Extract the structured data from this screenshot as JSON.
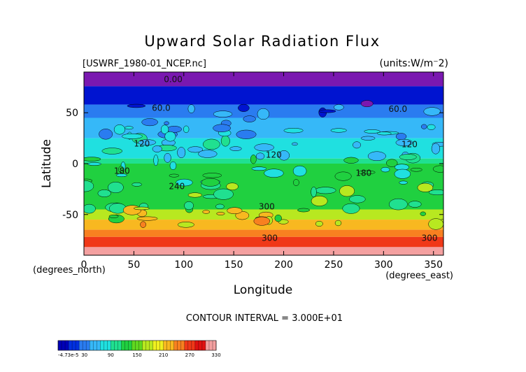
{
  "chart_data": {
    "type": "heatmap",
    "title": "Upward Solar Radiation Flux",
    "source_file": "[USWRF_1980-01_NCEP.nc]",
    "units": "(units:W/m⁻2)",
    "xlabel": "Longitude",
    "xunit": "(degrees_east)",
    "ylabel": "Latitude",
    "yunit": "(degrees_north)",
    "xlim": [
      0,
      360
    ],
    "ylim": [
      -90,
      90
    ],
    "x_ticks": [
      "0",
      "50",
      "100",
      "150",
      "200",
      "250",
      "300",
      "350"
    ],
    "y_ticks": [
      "50",
      "0",
      "-50"
    ],
    "y_tick_values": [
      50,
      0,
      -50
    ],
    "contour_interval_text": "CONTOUR INTERVAL = 3.000E+01",
    "contour_labels": [
      "0.00",
      "60.0",
      "60.0",
      "120",
      "120",
      "120",
      "180",
      "180",
      "240",
      "300",
      "300",
      "300"
    ],
    "colorbar": {
      "labels": [
        "-4.73e-5",
        "30",
        "90",
        "150",
        "210",
        "270",
        "330"
      ],
      "colors": [
        "#0000b8",
        "#0030e0",
        "#2a7cf0",
        "#36b8f8",
        "#20e0e0",
        "#20e090",
        "#20d040",
        "#60d820",
        "#b8e820",
        "#f0f020",
        "#f8b820",
        "#f88020",
        "#f03818",
        "#e01010",
        "#f4a0a0"
      ]
    },
    "lat_bands": [
      {
        "lat_range": [
          76,
          90
        ],
        "value": 0,
        "color": "#7a18b0"
      },
      {
        "lat_range": [
          58,
          76
        ],
        "value": 30,
        "color": "#0014d0"
      },
      {
        "lat_range": [
          45,
          58
        ],
        "value": 60,
        "color": "#2a7cf0"
      },
      {
        "lat_range": [
          25,
          45
        ],
        "value": 90,
        "color": "#36b8f8"
      },
      {
        "lat_range": [
          5,
          25
        ],
        "value": 120,
        "color": "#20e0e0"
      },
      {
        "lat_range": [
          -20,
          5
        ],
        "value": 150,
        "color": "#20e090"
      },
      {
        "lat_range": [
          -45,
          0
        ],
        "value": 180,
        "color": "#20d040"
      },
      {
        "lat_range": [
          -55,
          -45
        ],
        "value": 210,
        "color": "#b8e820"
      },
      {
        "lat_range": [
          -65,
          -55
        ],
        "value": 240,
        "color": "#f8b820"
      },
      {
        "lat_range": [
          -72,
          -65
        ],
        "value": 270,
        "color": "#f88020"
      },
      {
        "lat_range": [
          -82,
          -72
        ],
        "value": 300,
        "color": "#f03818"
      },
      {
        "lat_range": [
          -90,
          -82
        ],
        "value": 330,
        "color": "#f4a0a0"
      }
    ]
  }
}
